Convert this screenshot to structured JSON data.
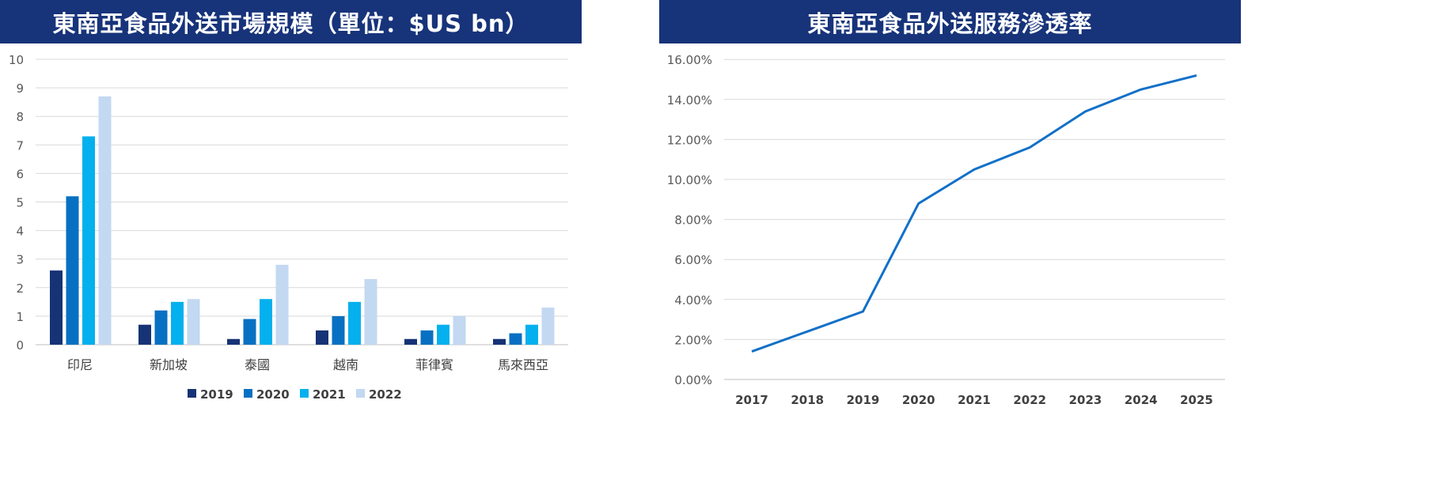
{
  "chart_data": [
    {
      "type": "bar",
      "title": "東南亞食品外送市場規模（單位：$US bn）",
      "categories": [
        "印尼",
        "新加坡",
        "泰國",
        "越南",
        "菲律賓",
        "馬來西亞"
      ],
      "series": [
        {
          "name": "2019",
          "color": "#163375",
          "values": [
            2.6,
            0.7,
            0.2,
            0.5,
            0.2,
            0.2
          ]
        },
        {
          "name": "2020",
          "color": "#0870c2",
          "values": [
            5.2,
            1.2,
            0.9,
            1.0,
            0.5,
            0.4
          ]
        },
        {
          "name": "2021",
          "color": "#05b0ee",
          "values": [
            7.3,
            1.5,
            1.6,
            1.5,
            0.7,
            0.7
          ]
        },
        {
          "name": "2022",
          "color": "#c3d8f1",
          "values": [
            8.7,
            1.6,
            2.8,
            2.3,
            1.0,
            1.3
          ]
        }
      ],
      "yticks": [
        "0",
        "1",
        "2",
        "3",
        "4",
        "5",
        "6",
        "7",
        "8",
        "9",
        "10"
      ],
      "ylim": [
        0,
        10
      ],
      "grid": true,
      "legend": "bottom"
    },
    {
      "type": "line",
      "title": "東南亞食品外送服務滲透率",
      "x": [
        "2017",
        "2018",
        "2019",
        "2020",
        "2021",
        "2022",
        "2023",
        "2024",
        "2025"
      ],
      "series": [
        {
          "name": "滲透率",
          "color": "#1170c8",
          "values": [
            1.4,
            2.4,
            3.4,
            8.8,
            10.5,
            11.6,
            13.4,
            14.5,
            15.2
          ]
        }
      ],
      "yticks": [
        "0.00%",
        "2.00%",
        "4.00%",
        "6.00%",
        "8.00%",
        "10.00%",
        "12.00%",
        "14.00%",
        "16.00%"
      ],
      "ylim": [
        0,
        16
      ],
      "grid": true
    }
  ]
}
